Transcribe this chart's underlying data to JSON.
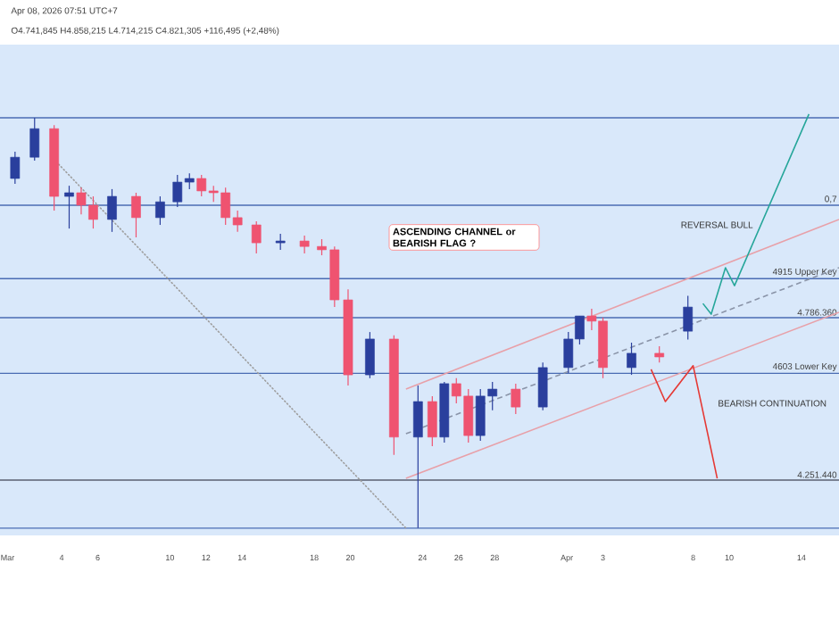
{
  "chart_data": {
    "type": "candlestick",
    "x": [
      "2026-03-01T10:00",
      "2026-03-02T12:00",
      "2026-03-03T14:00",
      "2026-03-04T10:00",
      "2026-03-05T02:00",
      "2026-03-05T18:00",
      "2026-03-06T19:00",
      "2026-03-08T03:00",
      "2026-03-09T11:00",
      "2026-03-10T10:00",
      "2026-03-11T02:00",
      "2026-03-11T18:00",
      "2026-03-12T10:00",
      "2026-03-13T02:00",
      "2026-03-13T18:00",
      "2026-03-14T19:00",
      "2026-03-16T03:00",
      "2026-03-17T11:00",
      "2026-03-18T10:00",
      "2026-03-19T03:00",
      "2026-03-19T21:00",
      "2026-03-21T02:00",
      "2026-03-22T10:00",
      "2026-03-23T18:00",
      "2026-03-24T13:00",
      "2026-03-25T05:00",
      "2026-03-25T21:00",
      "2026-03-26T13:00",
      "2026-03-27T05:00",
      "2026-03-27T21:00",
      "2026-03-29T04:00",
      "2026-03-30T16:00",
      "2026-04-01T02:00",
      "2026-04-01T17:00",
      "2026-04-02T09:00",
      "2026-04-03T00:00",
      "2026-04-04T14:00",
      "2026-04-06T03:00",
      "2026-04-07T17:00"
    ],
    "ohlc": [
      [
        5245000,
        5333000,
        5227000,
        5315000
      ],
      [
        5315000,
        5445000,
        5304000,
        5409000
      ],
      [
        5409000,
        5421000,
        5139000,
        5186000
      ],
      [
        5186000,
        5221000,
        5080000,
        5198000
      ],
      [
        5198000,
        5215000,
        5127000,
        5157000
      ],
      [
        5157000,
        5186000,
        5080000,
        5110000
      ],
      [
        5110000,
        5210000,
        5069000,
        5186000
      ],
      [
        5186000,
        5198000,
        5051000,
        5116000
      ],
      [
        5116000,
        5186000,
        5092000,
        5168000
      ],
      [
        5168000,
        5257000,
        5151000,
        5233000
      ],
      [
        5233000,
        5262000,
        5210000,
        5245000
      ],
      [
        5245000,
        5257000,
        5186000,
        5204000
      ],
      [
        5204000,
        5221000,
        5168000,
        5198000
      ],
      [
        5198000,
        5215000,
        5092000,
        5116000
      ],
      [
        5116000,
        5139000,
        5069000,
        5092000
      ],
      [
        5092000,
        5104000,
        4998000,
        5033000
      ],
      [
        5033000,
        5063000,
        5010000,
        5039000
      ],
      [
        5039000,
        5057000,
        4998000,
        5021000
      ],
      [
        5021000,
        5045000,
        4992000,
        5010000
      ],
      [
        5010000,
        5021000,
        4822000,
        4845000
      ],
      [
        4845000,
        4880000,
        4563000,
        4598000
      ],
      [
        4598000,
        4739000,
        4587000,
        4716000
      ],
      [
        4716000,
        4728000,
        4334000,
        4393000
      ],
      [
        4393000,
        4563000,
        4093000,
        4510000
      ],
      [
        4510000,
        4528000,
        4363000,
        4393000
      ],
      [
        4393000,
        4575000,
        4375000,
        4569000
      ],
      [
        4569000,
        4587000,
        4504000,
        4528000
      ],
      [
        4528000,
        4551000,
        4375000,
        4398000
      ],
      [
        4398000,
        4551000,
        4381000,
        4528000
      ],
      [
        4528000,
        4575000,
        4481000,
        4551000
      ],
      [
        4551000,
        4569000,
        4469000,
        4492000
      ],
      [
        4492000,
        4639000,
        4481000,
        4622000
      ],
      [
        4622000,
        4739000,
        4604000,
        4716000
      ],
      [
        4716000,
        4792000,
        4698000,
        4792000
      ],
      [
        4792000,
        4816000,
        4745000,
        4775000
      ],
      [
        4775000,
        4787000,
        4587000,
        4622000
      ],
      [
        4622000,
        4704000,
        4598000,
        4669000
      ],
      [
        4669000,
        4692000,
        4639000,
        4657000
      ],
      [
        4741845,
        4858215,
        4714215,
        4821305
      ]
    ],
    "colors": [
      "#2a3f9d",
      "#2a3f9d",
      "#ef5370",
      "#2a3f9d",
      "#ef5370",
      "#ef5370",
      "#2a3f9d",
      "#ef5370",
      "#2a3f9d",
      "#2a3f9d",
      "#2a3f9d",
      "#ef5370",
      "#ef5370",
      "#ef5370",
      "#ef5370",
      "#ef5370",
      "#2a3f9d",
      "#ef5370",
      "#ef5370",
      "#ef5370",
      "#ef5370",
      "#2a3f9d",
      "#ef5370",
      "#2a3f9d",
      "#ef5370",
      "#2a3f9d",
      "#ef5370",
      "#ef5370",
      "#2a3f9d",
      "#2a3f9d",
      "#ef5370",
      "#2a3f9d",
      "#2a3f9d",
      "#2a3f9d",
      "#ef5370",
      "#ef5370",
      "#2a3f9d",
      "#ef5370",
      "#2a3f9d"
    ],
    "series": [
      {
        "type": "line",
        "x": [
          "2026-03-03T20:00",
          "2026-03-23T02:00"
        ],
        "values": [
          5292000,
          4093000
        ],
        "color": "#9e9e9e",
        "line_style": "dotted"
      },
      {
        "type": "line",
        "x": [
          "2026-03-23T02:00",
          "2026-04-16T02:00"
        ],
        "values": [
          4551000,
          5110000
        ],
        "color": "#e8a0a8",
        "line_style": "solid"
      },
      {
        "type": "line",
        "x": [
          "2026-03-23T02:00",
          "2026-04-16T02:00"
        ],
        "values": [
          4257000,
          4804000
        ],
        "color": "#e8a0a8",
        "line_style": "solid"
      },
      {
        "type": "line",
        "x": [
          "2026-03-23T02:00",
          "2026-04-16T02:00"
        ],
        "values": [
          4404000,
          4951000
        ],
        "color": "#8a94a8",
        "line_style": "dashed"
      },
      {
        "type": "line",
        "x": [
          "2026-04-08T13:00",
          "2026-04-09T00:00",
          "2026-04-09T19:00",
          "2026-04-10T07:00",
          "2026-04-14T10:00"
        ],
        "values": [
          4833000,
          4798000,
          4951000,
          4892000,
          5457000
        ],
        "color": "#26a69a",
        "line_style": "solid"
      },
      {
        "type": "line",
        "x": [
          "2026-04-05T16:00",
          "2026-04-06T11:00",
          "2026-04-08T00:00",
          "2026-04-09T08:00"
        ],
        "values": [
          4616000,
          4510000,
          4628000,
          4257000
        ],
        "color": "#e53935",
        "line_style": "solid"
      }
    ],
    "xlim": [
      "2026-02-28T14:00",
      "2026-04-16T02:00"
    ],
    "ylim": [
      4069000,
      5686000
    ],
    "xticks": [
      {
        "value": "2026-03-01",
        "label": "Mar"
      },
      {
        "value": "2026-03-04",
        "label": "4"
      },
      {
        "value": "2026-03-06",
        "label": "6"
      },
      {
        "value": "2026-03-10",
        "label": "10"
      },
      {
        "value": "2026-03-12",
        "label": "12"
      },
      {
        "value": "2026-03-14",
        "label": "14"
      },
      {
        "value": "2026-03-18",
        "label": "18"
      },
      {
        "value": "2026-03-20",
        "label": "20"
      },
      {
        "value": "2026-03-24",
        "label": "24"
      },
      {
        "value": "2026-03-26",
        "label": "26"
      },
      {
        "value": "2026-03-28",
        "label": "28"
      },
      {
        "value": "2026-04-01",
        "label": "Apr"
      },
      {
        "value": "2026-04-03",
        "label": "3"
      },
      {
        "value": "2026-04-08",
        "label": "8"
      },
      {
        "value": "2026-04-10",
        "label": "10"
      },
      {
        "value": "2026-04-14",
        "label": "14"
      }
    ],
    "tick_labels": "x",
    "ref_lines": [
      {
        "axis": "y",
        "value": 5445000,
        "color": "#4a6cb3"
      },
      {
        "axis": "y",
        "value": 5157000,
        "color": "#4a6cb3"
      },
      {
        "axis": "y",
        "value": 4915000,
        "label": "4915 Upper Key",
        "color": "#4a6cb3"
      },
      {
        "axis": "y",
        "value": 4786360,
        "label": "4.786.360",
        "color": "#4a6cb3"
      },
      {
        "axis": "y",
        "value": 4603000,
        "label": "4603 Lower Key",
        "color": "#4a6cb3"
      },
      {
        "axis": "y",
        "value": 4251440,
        "label": "4.251.440",
        "color": "#5a6070"
      },
      {
        "axis": "y",
        "value": 4093000,
        "color": "#4a6cb3"
      }
    ],
    "annotations": [
      "Apr 08, 2026 07:51 UTC+7",
      "O4.741,845 H4.858,215 L4.714,215 C4.821,305 +116,495 (+2,48%)",
      "ASCENDING CHANNEL or BEARISH FLAG ?",
      "REVERSAL BULL",
      "0,7",
      "BEARISH CONTINUATION"
    ]
  }
}
